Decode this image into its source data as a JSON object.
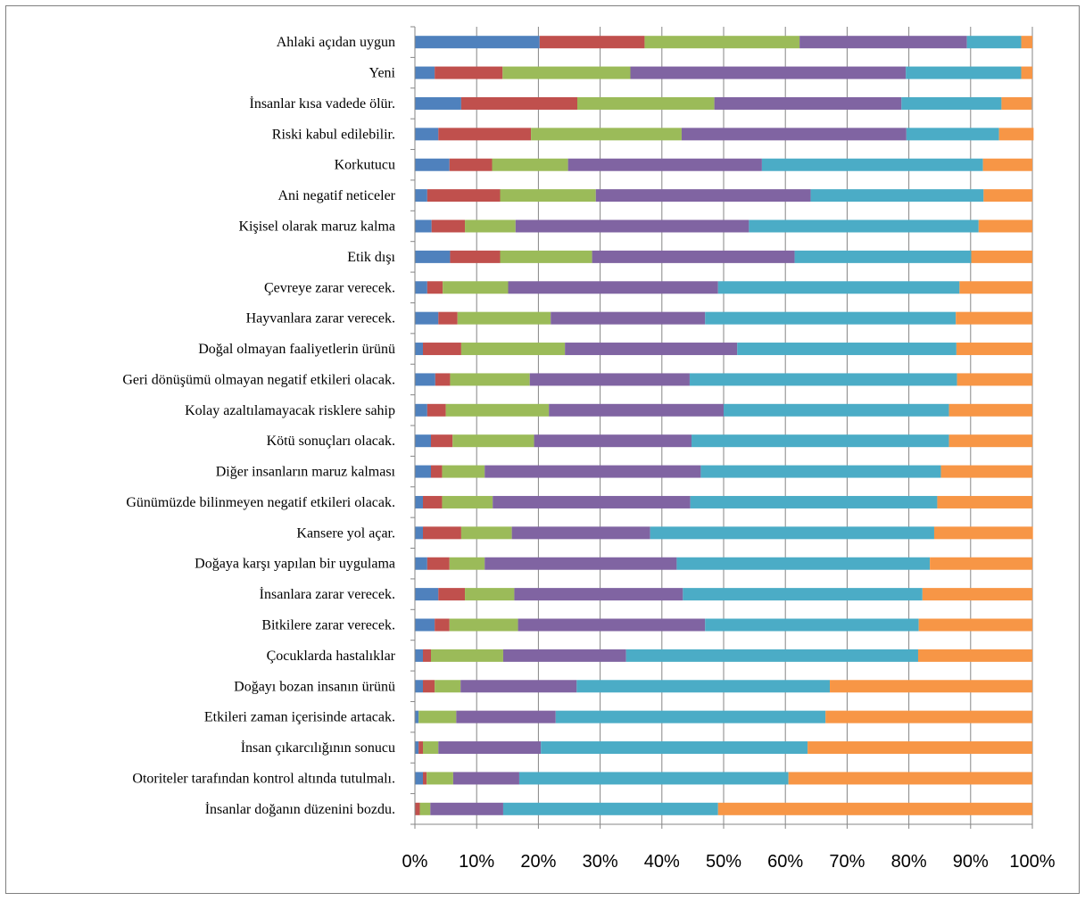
{
  "chart_data": {
    "type": "bar",
    "orientation": "horizontal",
    "stacked": "percent",
    "title": "",
    "xlabel": "",
    "ylabel": "",
    "xlim": [
      0,
      100
    ],
    "grid": "vertical",
    "legend": "none",
    "x_ticks": [
      "0%",
      "10%",
      "20%",
      "30%",
      "40%",
      "50%",
      "60%",
      "70%",
      "80%",
      "90%",
      "100%"
    ],
    "categories": [
      "Ahlaki açıdan uygun",
      "Yeni",
      "İnsanlar kısa vadede ölür.",
      "Riski kabul edilebilir.",
      "Korkutucu",
      "Ani negatif neticeler",
      "Kişisel olarak maruz kalma",
      "Etik dışı",
      "Çevreye zarar verecek.",
      "Hayvanlara zarar verecek.",
      "Doğal olmayan faaliyetlerin ürünü",
      "Geri dönüşümü olmayan negatif etkileri olacak.",
      "Kolay azaltılamayacak risklere sahip",
      "Kötü sonuçları olacak.",
      "Diğer insanların maruz kalması",
      "Günümüzde bilinmeyen negatif etkileri olacak.",
      "Kansere yol açar.",
      "Doğaya karşı yapılan bir uygulama",
      "İnsanlara zarar verecek.",
      "Bitkilere zarar verecek.",
      "Çocuklarda hastalıklar",
      "Doğayı bozan insanın ürünü",
      "Etkileri zaman içerisinde artacak.",
      "İnsan çıkarcılığının sonucu",
      "Otoriteler tarafından kontrol altında tutulmalı.",
      "İnsanlar doğanın düzenini bozdu."
    ],
    "colors": [
      "#4f81bd",
      "#c0504d",
      "#9bbb59",
      "#8064a2",
      "#4bacc6",
      "#f79646"
    ],
    "series": [
      {
        "values": [
          20.2,
          3.2,
          7.5,
          3.8,
          5.6,
          2.0,
          2.7,
          5.7,
          2.0,
          3.8,
          1.3,
          3.3,
          2.0,
          2.6,
          2.6,
          1.3,
          1.3,
          2.0,
          3.8,
          3.2,
          1.3,
          1.3,
          0.6,
          0.6,
          1.3,
          0.0
        ]
      },
      {
        "values": [
          17.0,
          11.0,
          18.8,
          15.0,
          6.9,
          11.8,
          5.4,
          8.1,
          2.5,
          3.1,
          6.2,
          2.4,
          3.0,
          3.5,
          1.8,
          3.1,
          6.2,
          3.6,
          4.3,
          2.4,
          1.3,
          1.9,
          0.0,
          0.7,
          0.6,
          0.8
        ]
      },
      {
        "values": [
          25.1,
          20.7,
          22.2,
          24.4,
          12.3,
          15.5,
          8.2,
          14.9,
          10.6,
          15.1,
          16.8,
          12.9,
          16.7,
          13.2,
          6.9,
          8.2,
          8.2,
          5.7,
          8.0,
          11.1,
          11.7,
          4.2,
          6.1,
          2.5,
          4.3,
          1.7
        ]
      },
      {
        "values": [
          27.1,
          44.6,
          30.3,
          36.4,
          31.4,
          34.8,
          37.8,
          32.8,
          34.0,
          25.0,
          27.9,
          25.9,
          28.3,
          25.5,
          35.0,
          32.0,
          22.4,
          31.1,
          27.3,
          30.3,
          19.9,
          18.8,
          16.1,
          16.6,
          10.7,
          11.8
        ]
      },
      {
        "values": [
          8.8,
          18.7,
          16.2,
          15.0,
          35.8,
          28.0,
          37.2,
          28.6,
          39.1,
          40.6,
          35.5,
          43.3,
          36.5,
          41.7,
          38.9,
          40.0,
          46.0,
          41.0,
          38.8,
          34.6,
          47.3,
          41.0,
          43.7,
          43.2,
          43.6,
          34.8
        ]
      },
      {
        "values": [
          1.8,
          1.8,
          4.9,
          5.6,
          8.0,
          7.9,
          8.7,
          9.9,
          11.8,
          12.4,
          12.3,
          12.2,
          13.5,
          13.5,
          14.8,
          15.4,
          16.0,
          16.6,
          17.8,
          18.4,
          18.5,
          32.8,
          33.5,
          36.4,
          39.5,
          50.9
        ]
      }
    ]
  }
}
